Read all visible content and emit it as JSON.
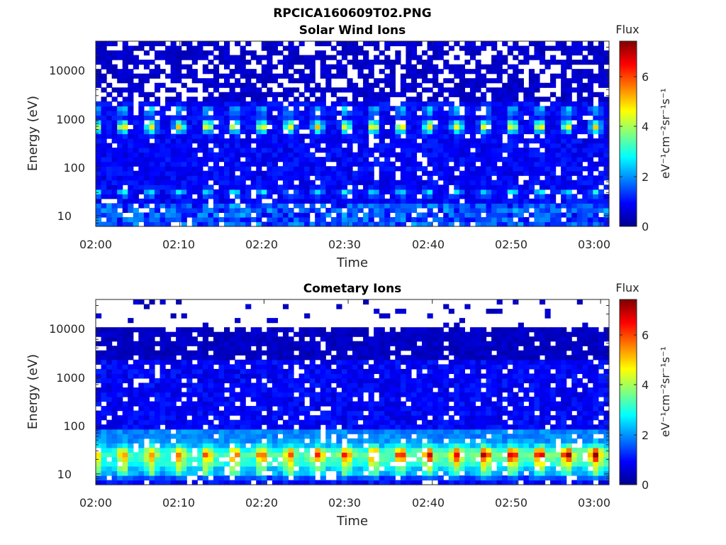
{
  "figure": {
    "title": "RPCICA160609T02.PNG"
  },
  "colormap": "jet",
  "chart_data": [
    {
      "type": "heatmap",
      "id": "panel-1",
      "title": "Solar Wind Ions",
      "xlabel": "Time",
      "ylabel": "Energy (eV)",
      "yscale": "log",
      "x_range": [
        "02:00",
        "03:01"
      ],
      "y_range_eV": [
        6,
        40000
      ],
      "x_ticks": [
        "02:00",
        "02:10",
        "02:20",
        "02:30",
        "02:40",
        "02:50",
        "03:00"
      ],
      "y_ticks": [
        "10",
        "100",
        "1000",
        "10000"
      ],
      "colorbar": {
        "title": "Flux",
        "label": "eV⁻¹cm⁻²sr⁻¹s⁻¹",
        "ticks": [
          "0",
          "2",
          "4",
          "6"
        ],
        "range": [
          0,
          7.4
        ]
      },
      "features": [
        {
          "description_type": "peak_band",
          "energy_eV": 700,
          "peak_flux": 4,
          "period_min": 3.3
        },
        {
          "description_type": "secondary_band",
          "energy_eV": 1500,
          "peak_flux": 3
        },
        {
          "description_type": "low_energy_band",
          "energy_eV": 30,
          "peak_flux": 3
        },
        {
          "description_type": "background",
          "flux": 1
        }
      ]
    },
    {
      "type": "heatmap",
      "id": "panel-2",
      "title": "Cometary Ions",
      "xlabel": "Time",
      "ylabel": "Energy (eV)",
      "yscale": "log",
      "x_range": [
        "02:00",
        "03:01"
      ],
      "y_range_eV": [
        6,
        40000
      ],
      "x_ticks": [
        "02:00",
        "02:10",
        "02:20",
        "02:30",
        "02:40",
        "02:50",
        "03:00"
      ],
      "y_ticks": [
        "10",
        "100",
        "1000",
        "10000"
      ],
      "colorbar": {
        "title": "Flux",
        "label": "eV⁻¹cm⁻²sr⁻¹s⁻¹",
        "ticks": [
          "0",
          "2",
          "4",
          "6"
        ],
        "range": [
          0,
          7.4
        ]
      },
      "features": [
        {
          "description_type": "peak_band",
          "energy_eV": 25,
          "peak_flux": 6.5,
          "period_min": 3.3
        },
        {
          "description_type": "low_energy_band",
          "energy_eV": 12,
          "peak_flux": 4
        },
        {
          "description_type": "upper_cutoff",
          "energy_eV": 11000
        },
        {
          "description_type": "background",
          "flux": 1
        }
      ]
    }
  ]
}
